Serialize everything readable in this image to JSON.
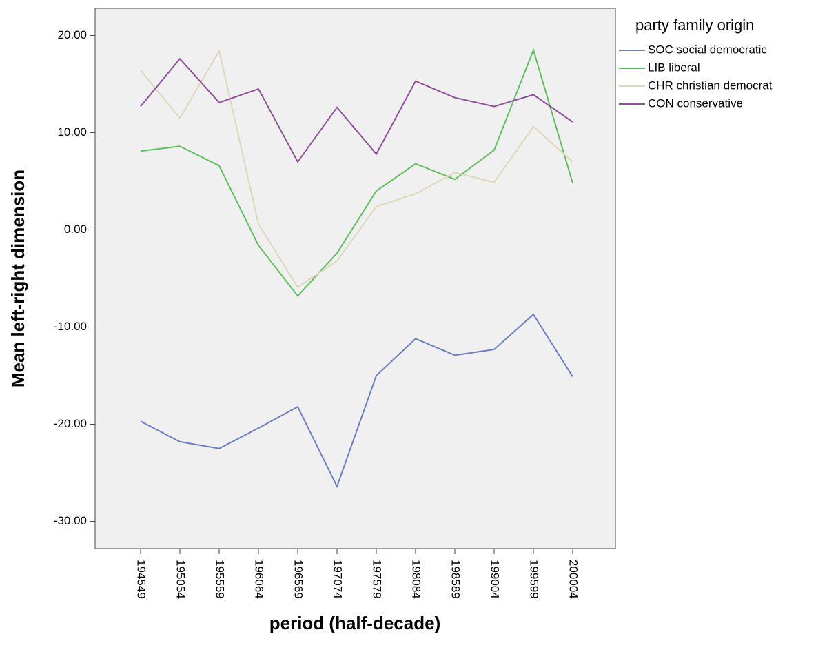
{
  "chart_data": {
    "type": "line",
    "x_label": "period (half-decade)",
    "y_label": "Mean left-right dimension",
    "legend_title": "party family origin",
    "legend_position": "right",
    "categories": [
      "194549",
      "195054",
      "195559",
      "196064",
      "196569",
      "197074",
      "197579",
      "198084",
      "198589",
      "199004",
      "199599",
      "200004"
    ],
    "series": [
      {
        "name": "SOC social democratic",
        "color": "#6b7ec4",
        "values": [
          -19.7,
          -21.8,
          -22.5,
          -20.4,
          -18.2,
          -26.4,
          -15.0,
          -11.2,
          -12.9,
          -12.3,
          -8.7,
          -15.1
        ]
      },
      {
        "name": "LIB liberal",
        "color": "#5cc05c",
        "values": [
          8.1,
          8.6,
          6.6,
          -1.6,
          -6.8,
          -2.4,
          4.0,
          6.8,
          5.2,
          8.2,
          18.5,
          4.8
        ]
      },
      {
        "name": "CHR christian democrat",
        "color": "#ddd8b8",
        "values": [
          16.4,
          11.5,
          18.4,
          0.6,
          -5.9,
          -3.2,
          2.4,
          3.7,
          5.9,
          4.9,
          10.6,
          7.0
        ]
      },
      {
        "name": "CON conservative",
        "color": "#8e4e9a",
        "values": [
          12.7,
          17.6,
          13.1,
          14.5,
          7.0,
          12.6,
          7.8,
          15.3,
          13.6,
          12.7,
          13.9,
          11.1
        ]
      }
    ],
    "ylim": [
      -32.8,
      22.8
    ],
    "yticks": [
      {
        "value": -30,
        "label": "-30.00"
      },
      {
        "value": -20,
        "label": "-20.00"
      },
      {
        "value": -10,
        "label": "-10.00"
      },
      {
        "value": 0,
        "label": "0.00"
      },
      {
        "value": 10,
        "label": "10.00"
      },
      {
        "value": 20,
        "label": "20.00"
      }
    ],
    "grid": false
  }
}
